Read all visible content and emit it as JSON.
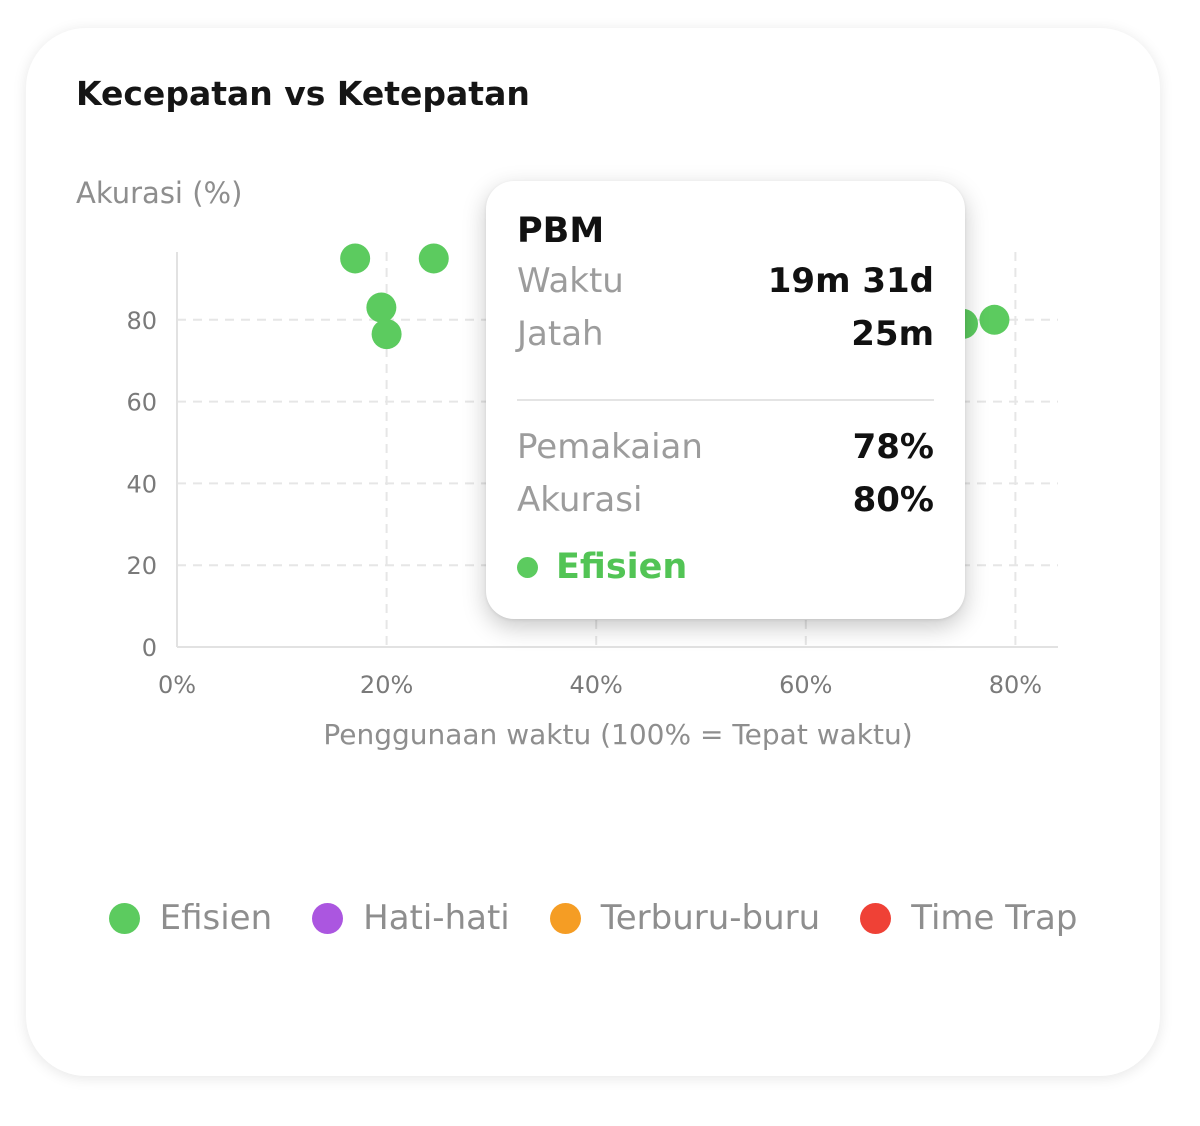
{
  "card": {
    "title": "Kecepatan vs Ketepatan"
  },
  "colors": {
    "efisien": "#5ccb5f",
    "hati_hati": "#ab56e0",
    "terburu_buru": "#f59d24",
    "time_trap": "#ef4136"
  },
  "chart_data": {
    "type": "scatter",
    "title": "Kecepatan vs Ketepatan",
    "xlabel": "Penggunaan waktu (100% = Tepat waktu)",
    "ylabel": "Akurasi (%)",
    "xlim": [
      0,
      84
    ],
    "ylim": [
      0,
      96
    ],
    "xticks": [
      0,
      20,
      40,
      60,
      80
    ],
    "xtick_labels": [
      "0%",
      "20%",
      "40%",
      "60%",
      "80%"
    ],
    "yticks": [
      0,
      20,
      40,
      60,
      80
    ],
    "ytick_labels": [
      "0",
      "20",
      "40",
      "60",
      "80"
    ],
    "grid": true,
    "legend_position": "bottom",
    "series": [
      {
        "name": "Efisien",
        "color": "#5ccb5f",
        "points": [
          {
            "x": 17,
            "y": 95
          },
          {
            "x": 24.5,
            "y": 95
          },
          {
            "x": 19.5,
            "y": 83
          },
          {
            "x": 20,
            "y": 76.5
          },
          {
            "x": 75,
            "y": 79
          },
          {
            "x": 78,
            "y": 80
          }
        ]
      },
      {
        "name": "Hati-hati",
        "color": "#ab56e0",
        "points": []
      },
      {
        "name": "Terburu-buru",
        "color": "#f59d24",
        "points": []
      },
      {
        "name": "Time Trap",
        "color": "#ef4136",
        "points": []
      }
    ]
  },
  "tooltip": {
    "title": "PBM",
    "rows": [
      {
        "label": "Waktu",
        "value": "19m 31d"
      },
      {
        "label": "Jatah",
        "value": "25m"
      },
      {
        "label": "Pemakaian",
        "value": "78%"
      },
      {
        "label": "Akurasi",
        "value": "80%"
      }
    ],
    "status": "Efisien"
  },
  "legend": [
    {
      "label": "Efisien",
      "color": "#5ccb5f"
    },
    {
      "label": "Hati-hati",
      "color": "#ab56e0"
    },
    {
      "label": "Terburu-buru",
      "color": "#f59d24"
    },
    {
      "label": "Time Trap",
      "color": "#ef4136"
    }
  ]
}
